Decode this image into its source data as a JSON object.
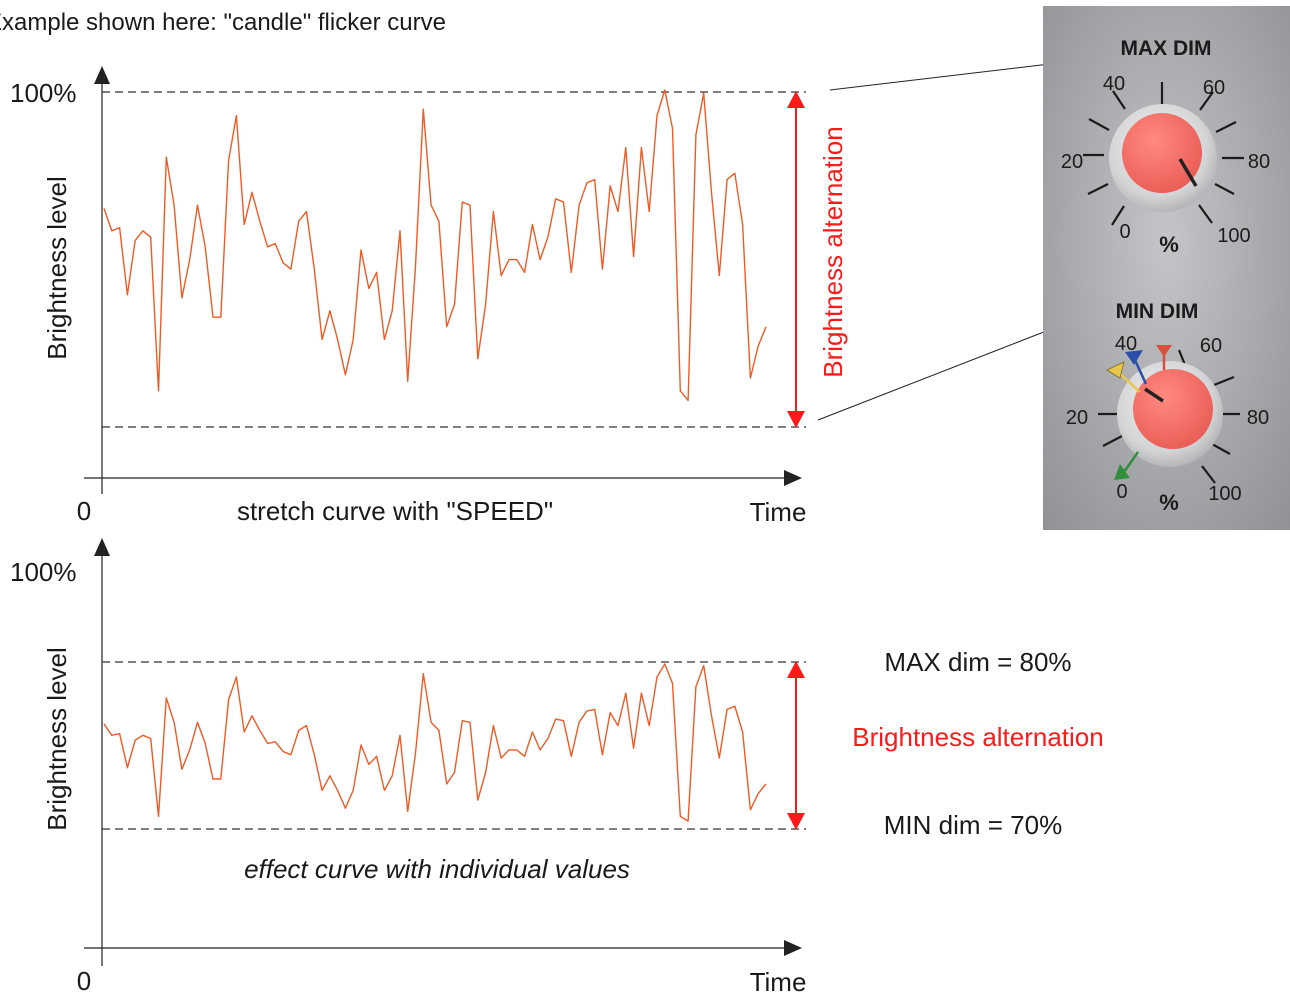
{
  "caption": "Example shown here: \"candle\" flicker curve",
  "top_chart": {
    "y_top_label": "100%",
    "y_axis_label": "Brightness level",
    "x_origin_label": "0",
    "x_axis_label": "Time",
    "note": "stretch curve with \"SPEED\"",
    "span_label": "Brightness alternation"
  },
  "bottom_chart": {
    "y_top_label": "100%",
    "y_axis_label": "Brightness level",
    "x_origin_label": "0",
    "x_axis_label": "Time",
    "note": "effect curve with individual values",
    "max_label": "MAX dim = 80%",
    "min_label": "MIN dim = 70%",
    "span_label": "Brightness alternation"
  },
  "photo": {
    "max_knob": {
      "title": "MAX DIM",
      "scale": [
        "0",
        "20",
        "40",
        "60",
        "80",
        "100"
      ],
      "unit": "%"
    },
    "min_knob": {
      "title": "MIN DIM",
      "scale": [
        "0",
        "20",
        "40",
        "60",
        "80",
        "100"
      ],
      "unit": "%"
    }
  },
  "colors": {
    "curve": "#f05a24",
    "span": "#ff1a1a",
    "knob": "#f2645c",
    "panel": "#a3a5a8",
    "marker_yellow": "#e8c84a",
    "marker_blue": "#2a4fa8",
    "marker_red": "#d9503c",
    "marker_green": "#2f8f3c"
  },
  "chart_data": {
    "type": "line",
    "series": [
      {
        "values": [
          0.63,
          0.56,
          0.57,
          0.36,
          0.53,
          0.56,
          0.54,
          0.06,
          0.79,
          0.64,
          0.35,
          0.47,
          0.64,
          0.51,
          0.29,
          0.29,
          0.78,
          0.92,
          0.58,
          0.68,
          0.59,
          0.51,
          0.52,
          0.46,
          0.44,
          0.59,
          0.62,
          0.44,
          0.22,
          0.31,
          0.22,
          0.11,
          0.22,
          0.5,
          0.38,
          0.43,
          0.22,
          0.31,
          0.56,
          0.09,
          0.45,
          0.94,
          0.64,
          0.59,
          0.26,
          0.33,
          0.65,
          0.64,
          0.16,
          0.33,
          0.62,
          0.42,
          0.47,
          0.47,
          0.43,
          0.58,
          0.47,
          0.54,
          0.66,
          0.65,
          0.43,
          0.64,
          0.71,
          0.72,
          0.44,
          0.7,
          0.62,
          0.82,
          0.48,
          0.82,
          0.62,
          0.92,
          1.0,
          0.88,
          0.06,
          0.03,
          0.86,
          0.99,
          0.68,
          0.42,
          0.72,
          0.74,
          0.58,
          0.1,
          0.2,
          0.26
        ]
      }
    ]
  }
}
